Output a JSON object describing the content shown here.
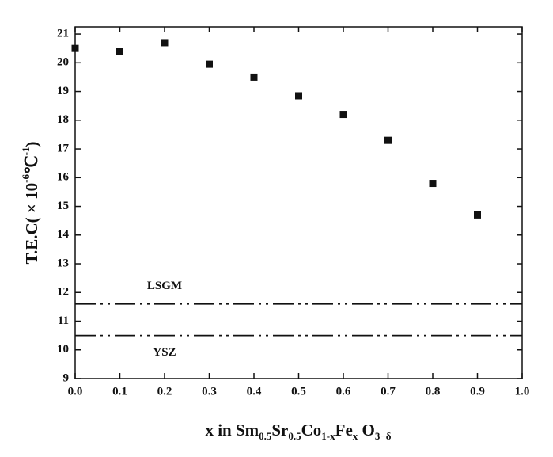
{
  "chart_data": {
    "type": "scatter",
    "x_label_parts": [
      {
        "text": "x in Sm"
      },
      {
        "text": "0.5",
        "shift": "sub"
      },
      {
        "text": "Sr"
      },
      {
        "text": "0.5",
        "shift": "sub"
      },
      {
        "text": "Co"
      },
      {
        "text": "1-x",
        "shift": "sub"
      },
      {
        "text": "Fe"
      },
      {
        "text": "x",
        "shift": "sub"
      },
      {
        "text": " O"
      },
      {
        "text": "3−δ",
        "shift": "sub"
      }
    ],
    "y_label_parts": [
      {
        "text": "T.E.C( × 10"
      },
      {
        "text": "-6",
        "shift": "super"
      },
      {
        "text": "℃"
      },
      {
        "text": "-1",
        "shift": "super"
      },
      {
        "text": ")"
      }
    ],
    "x": [
      0.0,
      0.1,
      0.2,
      0.3,
      0.4,
      0.5,
      0.6,
      0.7,
      0.8,
      0.9
    ],
    "series": [
      {
        "color": "#111111",
        "values": [
          20.5,
          20.4,
          20.7,
          19.95,
          19.5,
          18.85,
          18.2,
          17.3,
          15.8,
          14.7
        ]
      }
    ],
    "reference_lines": [
      {
        "name": "LSGM",
        "value": 11.6,
        "label_side": "above"
      },
      {
        "name": "YSZ",
        "value": 10.5,
        "label_side": "below"
      }
    ],
    "xlim": [
      0,
      1
    ],
    "ylim": [
      9,
      21.25
    ],
    "xticks": [
      {
        "value": 0,
        "label": "0.0"
      },
      0.1,
      0.2,
      0.3,
      0.4,
      0.5,
      0.6,
      0.7,
      0.8,
      0.9,
      {
        "value": 1,
        "label": "1.0"
      }
    ],
    "yticks": [
      9,
      10,
      11,
      12,
      13,
      14,
      15,
      16,
      17,
      18,
      19,
      20,
      21
    ]
  }
}
